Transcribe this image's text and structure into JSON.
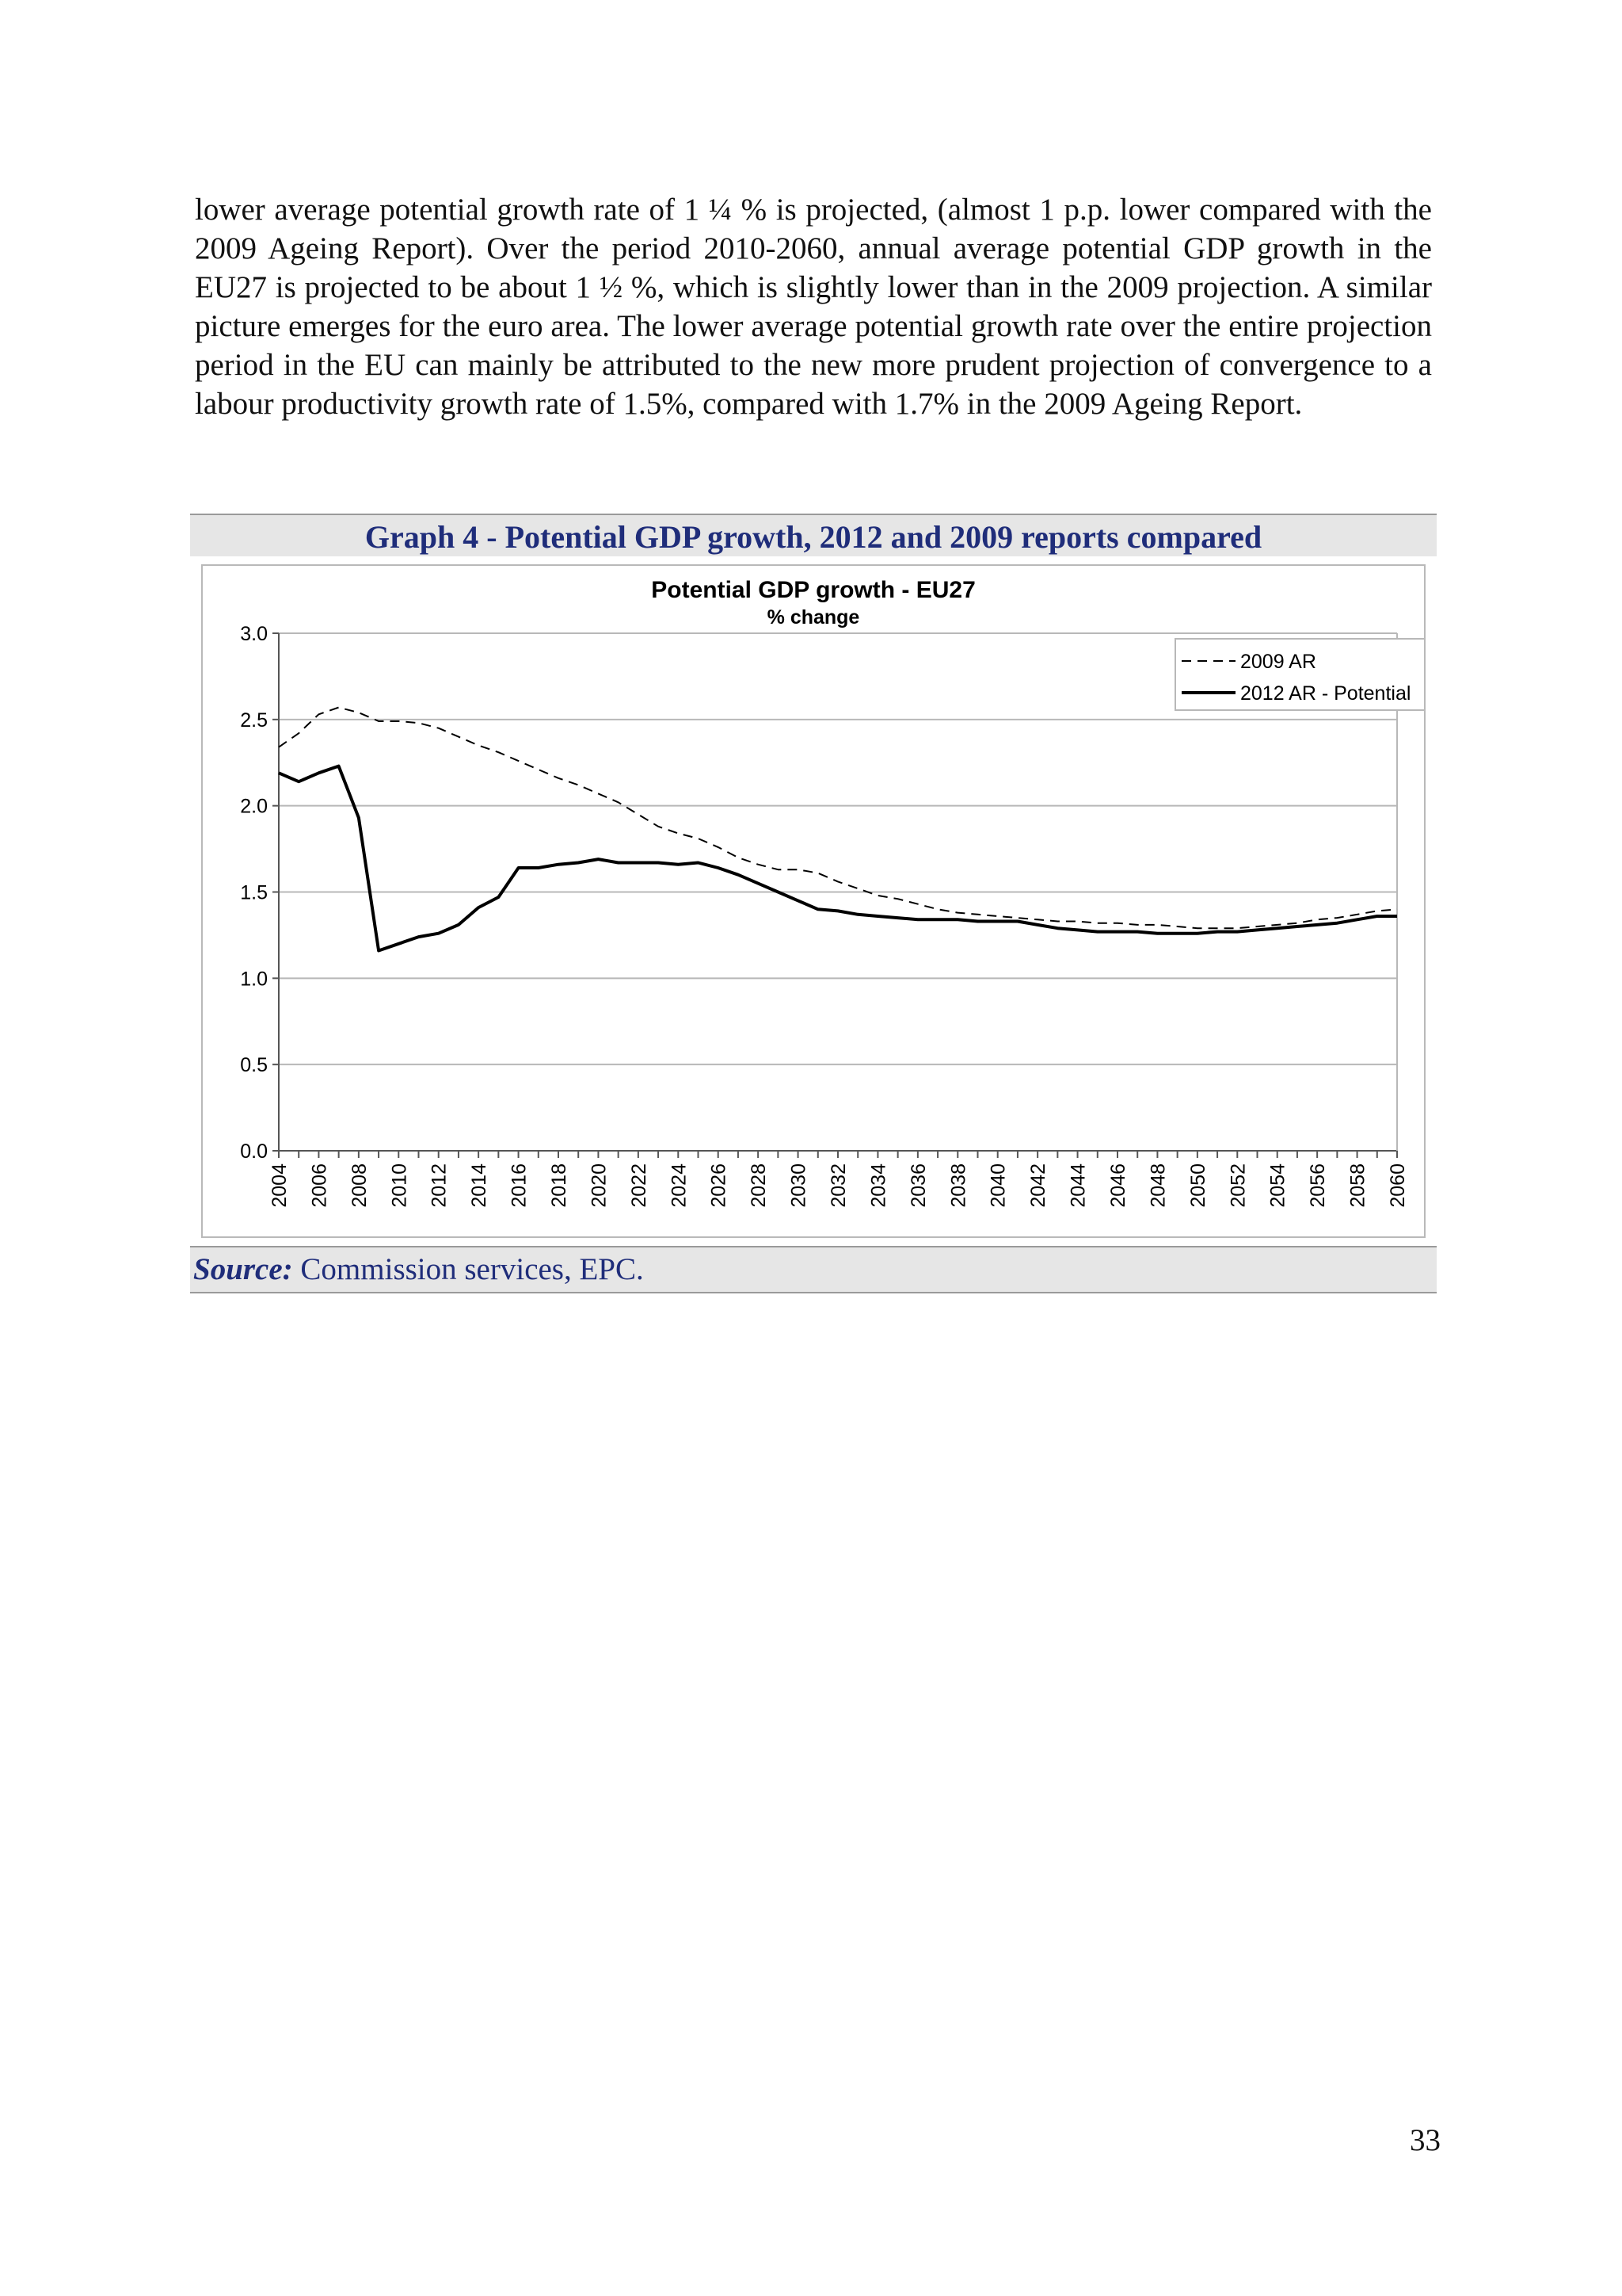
{
  "body_paragraph": "lower average potential growth rate of 1 ¼ % is projected, (almost 1 p.p. lower compared with the 2009 Ageing Report). Over the period 2010-2060, annual average potential GDP growth in the EU27 is projected to be about 1 ½ %, which is slightly lower than in the 2009 projection. A similar picture emerges for the euro area. The lower average potential growth rate over the entire projection period in the EU can mainly be attributed to the new more prudent projection of convergence to a labour productivity growth rate of 1.5%, compared with 1.7% in the 2009 Ageing Report.",
  "graph_caption": "Graph 4 - Potential GDP growth, 2012 and 2009 reports compared",
  "source": {
    "label": "Source:",
    "text": " Commission services, EPC."
  },
  "page_number": "33",
  "colors": {
    "caption_blue": "#1f2d7a",
    "caption_bar": "#e6e6e6"
  },
  "chart_data": {
    "type": "line",
    "title": "Potential GDP growth - EU27",
    "subtitle": "% change",
    "xlabel": "",
    "ylabel": "",
    "ylim": [
      0,
      3.0
    ],
    "yticks": [
      "0.0",
      "0.5",
      "1.0",
      "1.5",
      "2.0",
      "2.5",
      "3.0"
    ],
    "x": [
      2004,
      2005,
      2006,
      2007,
      2008,
      2009,
      2010,
      2011,
      2012,
      2013,
      2014,
      2015,
      2016,
      2017,
      2018,
      2019,
      2020,
      2021,
      2022,
      2023,
      2024,
      2025,
      2026,
      2027,
      2028,
      2029,
      2030,
      2031,
      2032,
      2033,
      2034,
      2035,
      2036,
      2037,
      2038,
      2039,
      2040,
      2041,
      2042,
      2043,
      2044,
      2045,
      2046,
      2047,
      2048,
      2049,
      2050,
      2051,
      2052,
      2053,
      2054,
      2055,
      2056,
      2057,
      2058,
      2059,
      2060
    ],
    "xtick_labels": [
      "2004",
      "2006",
      "2008",
      "2010",
      "2012",
      "2014",
      "2016",
      "2018",
      "2020",
      "2022",
      "2024",
      "2026",
      "2028",
      "2030",
      "2032",
      "2034",
      "2036",
      "2038",
      "2040",
      "2042",
      "2044",
      "2046",
      "2048",
      "2050",
      "2052",
      "2054",
      "2056",
      "2058",
      "2060"
    ],
    "legend_position": "top-right",
    "grid": true,
    "series": [
      {
        "name": "2009 AR",
        "style": "dashed",
        "values": [
          2.34,
          2.42,
          2.53,
          2.57,
          2.54,
          2.49,
          2.49,
          2.48,
          2.45,
          2.4,
          2.35,
          2.31,
          2.26,
          2.21,
          2.16,
          2.12,
          2.07,
          2.02,
          1.95,
          1.88,
          1.84,
          1.81,
          1.76,
          1.7,
          1.66,
          1.63,
          1.63,
          1.61,
          1.56,
          1.52,
          1.48,
          1.46,
          1.43,
          1.4,
          1.38,
          1.37,
          1.36,
          1.35,
          1.34,
          1.33,
          1.33,
          1.32,
          1.32,
          1.31,
          1.31,
          1.3,
          1.29,
          1.29,
          1.29,
          1.3,
          1.31,
          1.32,
          1.34,
          1.35,
          1.37,
          1.39,
          1.4
        ]
      },
      {
        "name": "2012 AR - Potential",
        "style": "solid",
        "values": [
          2.19,
          2.14,
          2.19,
          2.23,
          1.93,
          1.16,
          1.2,
          1.24,
          1.26,
          1.31,
          1.41,
          1.47,
          1.64,
          1.64,
          1.66,
          1.67,
          1.69,
          1.67,
          1.67,
          1.67,
          1.66,
          1.67,
          1.64,
          1.6,
          1.55,
          1.5,
          1.45,
          1.4,
          1.39,
          1.37,
          1.36,
          1.35,
          1.34,
          1.34,
          1.34,
          1.33,
          1.33,
          1.33,
          1.31,
          1.29,
          1.28,
          1.27,
          1.27,
          1.27,
          1.26,
          1.26,
          1.26,
          1.27,
          1.27,
          1.28,
          1.29,
          1.3,
          1.31,
          1.32,
          1.34,
          1.36,
          1.36
        ]
      }
    ]
  }
}
